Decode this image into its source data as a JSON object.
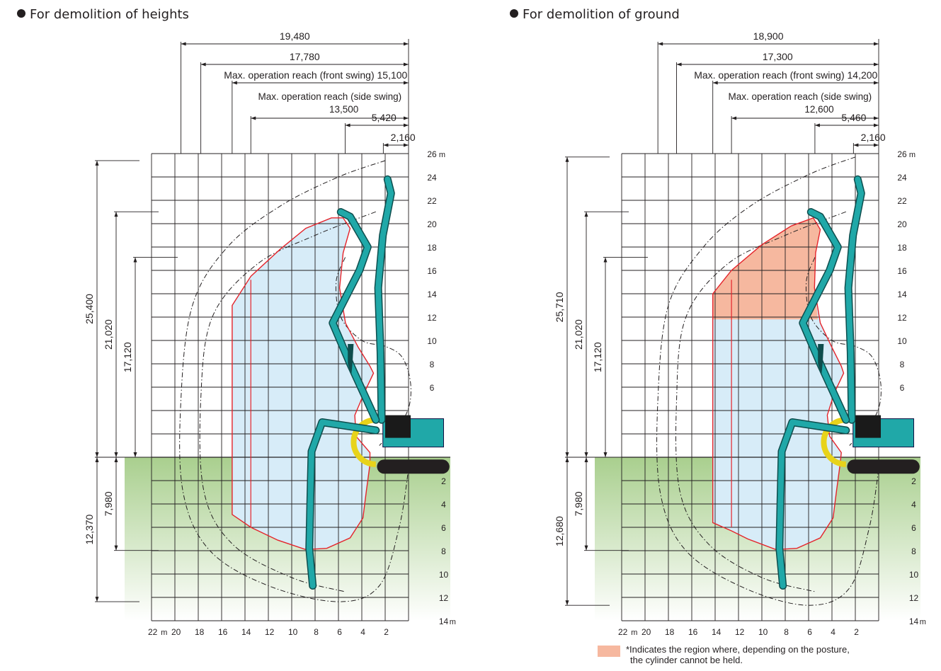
{
  "panels": [
    {
      "heading": "For demolition of heights",
      "dims_top": [
        {
          "label": "19,480",
          "x": -19.48
        },
        {
          "label": "17,780",
          "x": -17.78
        },
        {
          "label": "Max. operation reach (front swing) 15,100",
          "x": -15.1
        },
        {
          "label": "Max. operation reach (side swing)",
          "value": "13,500",
          "x": -13.5
        },
        {
          "label": "5,420",
          "x": -5.42
        },
        {
          "label": "2,160",
          "x": -2.16
        }
      ],
      "dims_left": [
        {
          "label": "25,400",
          "y_top": 25.4
        },
        {
          "label": "21,020",
          "y_top": 21.02
        },
        {
          "label": "17,120",
          "y_top": 17.12
        }
      ],
      "dims_below": [
        {
          "label": "12,370",
          "y_bottom": -12.37
        },
        {
          "label": "7,980",
          "y_bottom": -7.98
        }
      ],
      "cylinder_region": false,
      "shaded_outline": [
        [
          -15.1,
          13.0
        ],
        [
          -13.5,
          15.5
        ],
        [
          -11.0,
          17.8
        ],
        [
          -8.8,
          19.6
        ],
        [
          -6.6,
          20.5
        ],
        [
          -5.6,
          20.5
        ],
        [
          -5.0,
          19.6
        ],
        [
          -5.6,
          17.5
        ],
        [
          -5.9,
          14.5
        ],
        [
          -5.4,
          11.5
        ],
        [
          -4.3,
          9.4
        ],
        [
          -3.3,
          7.8
        ],
        [
          -3.0,
          7.2
        ],
        [
          -3.8,
          5.5
        ],
        [
          -4.6,
          3.6
        ],
        [
          -4.5,
          1.8
        ],
        [
          -3.3,
          0.4
        ],
        [
          -3.3,
          -0.6
        ],
        [
          -3.6,
          -2.8
        ],
        [
          -3.9,
          -5.2
        ],
        [
          -5.0,
          -6.9
        ],
        [
          -7.0,
          -7.8
        ],
        [
          -8.8,
          -7.9
        ],
        [
          -11.2,
          -7.1
        ],
        [
          -13.5,
          -6.0
        ],
        [
          -15.1,
          -4.9
        ]
      ],
      "outer_envelopes": [
        [
          [
            -2.0,
            25.4
          ],
          [
            -6.0,
            24.0
          ],
          [
            -11.0,
            21.5
          ],
          [
            -15.5,
            18.0
          ],
          [
            -18.5,
            13.0
          ],
          [
            -19.48,
            5.0
          ],
          [
            -19.3,
            -3.0
          ],
          [
            -17.0,
            -8.0
          ],
          [
            -12.0,
            -11.0
          ],
          [
            -6.0,
            -12.37
          ],
          [
            -2.5,
            -11.0
          ],
          [
            -0.8,
            -6.0
          ],
          [
            0.0,
            -1.0
          ]
        ],
        [
          [
            -2.8,
            21.02
          ],
          [
            -8.0,
            19.0
          ],
          [
            -13.0,
            16.5
          ],
          [
            -16.8,
            12.0
          ],
          [
            -17.78,
            5.0
          ],
          [
            -17.5,
            -3.0
          ],
          [
            -15.0,
            -7.5
          ],
          [
            -10.0,
            -10.3
          ],
          [
            -5.5,
            -11.5
          ]
        ],
        [
          [
            -5.42,
            17.12
          ],
          [
            -6.2,
            15.0
          ],
          [
            -5.8,
            12.0
          ],
          [
            -4.0,
            10.0
          ],
          [
            -2.0,
            9.5
          ],
          [
            -0.5,
            8.5
          ],
          [
            0.2,
            6.0
          ],
          [
            -0.3,
            3.5
          ],
          [
            -2.5,
            1.0
          ]
        ]
      ],
      "y_ticks_above": [
        "26",
        "24",
        "22",
        "20",
        "18",
        "16",
        "14",
        "12",
        "10",
        "8",
        "6"
      ],
      "y_ticks_below": [
        "2",
        "4",
        "6",
        "8",
        "10",
        "12",
        "14"
      ],
      "x_ticks": [
        "22",
        "20",
        "18",
        "16",
        "14",
        "12",
        "10",
        "8",
        "6",
        "4",
        "2"
      ],
      "unit": "m"
    },
    {
      "heading": "For demolition of ground",
      "dims_top": [
        {
          "label": "18,900",
          "x": -18.9
        },
        {
          "label": "17,300",
          "x": -17.3
        },
        {
          "label": "Max. operation reach (front swing) 14,200",
          "x": -14.2
        },
        {
          "label": "Max. operation reach (side swing)",
          "value": "12,600",
          "x": -12.6
        },
        {
          "label": "5,460",
          "x": -5.46
        },
        {
          "label": "2,160",
          "x": -2.16
        }
      ],
      "dims_left": [
        {
          "label": "25,710",
          "y_top": 25.71
        },
        {
          "label": "21,020",
          "y_top": 21.02
        },
        {
          "label": "17,120",
          "y_top": 17.12
        }
      ],
      "dims_below": [
        {
          "label": "12,680",
          "y_bottom": -12.68
        },
        {
          "label": "7,980",
          "y_bottom": -7.98
        }
      ],
      "cylinder_region": true,
      "shaded_outline": [
        [
          -14.2,
          14.0
        ],
        [
          -12.6,
          16.0
        ],
        [
          -10.0,
          18.2
        ],
        [
          -7.5,
          19.8
        ],
        [
          -5.6,
          20.5
        ],
        [
          -5.0,
          19.5
        ],
        [
          -5.4,
          17.5
        ],
        [
          -5.5,
          14.5
        ],
        [
          -5.0,
          11.5
        ],
        [
          -4.0,
          9.4
        ],
        [
          -3.2,
          7.8
        ],
        [
          -3.0,
          7.2
        ],
        [
          -3.8,
          5.5
        ],
        [
          -4.4,
          3.6
        ],
        [
          -4.2,
          1.8
        ],
        [
          -3.2,
          0.4
        ],
        [
          -3.3,
          -0.6
        ],
        [
          -3.6,
          -2.8
        ],
        [
          -3.9,
          -5.2
        ],
        [
          -5.0,
          -6.9
        ],
        [
          -7.0,
          -7.8
        ],
        [
          -8.8,
          -7.9
        ],
        [
          -11.2,
          -7.0
        ],
        [
          -12.6,
          -6.3
        ],
        [
          -14.2,
          -5.6
        ]
      ],
      "cylinder_outline": [
        [
          -14.2,
          14.0
        ],
        [
          -12.6,
          16.0
        ],
        [
          -10.0,
          18.2
        ],
        [
          -7.5,
          19.8
        ],
        [
          -5.6,
          20.5
        ],
        [
          -5.0,
          19.5
        ],
        [
          -5.4,
          17.5
        ],
        [
          -5.5,
          14.5
        ],
        [
          -5.2,
          11.8
        ],
        [
          -14.2,
          11.8
        ]
      ],
      "outer_envelopes": [
        [
          [
            -2.0,
            25.71
          ],
          [
            -6.0,
            24.2
          ],
          [
            -11.0,
            21.5
          ],
          [
            -15.0,
            18.0
          ],
          [
            -18.0,
            13.0
          ],
          [
            -18.9,
            5.0
          ],
          [
            -18.7,
            -3.0
          ],
          [
            -16.5,
            -8.0
          ],
          [
            -11.5,
            -11.2
          ],
          [
            -6.0,
            -12.68
          ],
          [
            -2.5,
            -11.2
          ],
          [
            -0.8,
            -6.0
          ],
          [
            0.0,
            -1.0
          ]
        ],
        [
          [
            -2.8,
            21.02
          ],
          [
            -8.0,
            19.0
          ],
          [
            -13.0,
            16.5
          ],
          [
            -16.5,
            12.0
          ],
          [
            -17.3,
            5.0
          ],
          [
            -17.0,
            -3.0
          ],
          [
            -14.5,
            -7.5
          ],
          [
            -10.0,
            -10.3
          ],
          [
            -5.5,
            -11.5
          ]
        ],
        [
          [
            -5.46,
            17.12
          ],
          [
            -6.2,
            15.0
          ],
          [
            -5.8,
            12.0
          ],
          [
            -4.0,
            10.0
          ],
          [
            -2.0,
            9.5
          ],
          [
            -0.5,
            8.5
          ],
          [
            0.2,
            6.0
          ],
          [
            -0.3,
            3.5
          ],
          [
            -2.5,
            1.0
          ]
        ]
      ],
      "y_ticks_above": [
        "26",
        "24",
        "22",
        "20",
        "18",
        "16",
        "14",
        "12",
        "10",
        "8",
        "6"
      ],
      "y_ticks_below": [
        "2",
        "4",
        "6",
        "8",
        "10",
        "12",
        "14"
      ],
      "x_ticks": [
        "22",
        "20",
        "18",
        "16",
        "14",
        "12",
        "10",
        "8",
        "6",
        "4",
        "2"
      ],
      "unit": "m"
    }
  ],
  "legend": {
    "text_line1": "*Indicates the region where, depending on the posture,",
    "text_line2": "the cylinder cannot be held."
  },
  "colors": {
    "shaded_fill": "#d7ecf8",
    "outline_red": "#e4242b",
    "cylinder_fill": "#f6b89f",
    "ground_green": "#a9cf8e",
    "machine_teal": "#20a8a8",
    "hazard_yellow": "#e8d31a",
    "grid": "#231f20"
  }
}
